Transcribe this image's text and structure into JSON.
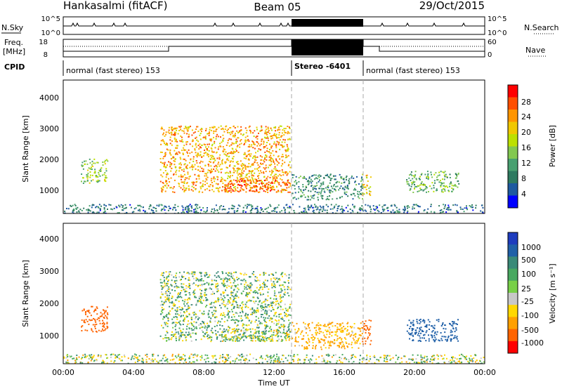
{
  "header": {
    "station": "Hankasalmi (fitACF)",
    "beam": "Beam 05",
    "date": "29/Oct/2015"
  },
  "panels_top": {
    "nsky_label": "N.Sky",
    "nsky_ticks": [
      "10^5",
      "10^0"
    ],
    "nsearch_label": "N.Search",
    "nsearch_ticks": [
      "10^5",
      "10^0"
    ],
    "freq_label_1": "Freq.",
    "freq_label_2": "[MHz]",
    "freq_ticks": [
      "18",
      "8"
    ],
    "nave_label": "Nave",
    "nave_ticks": [
      "60",
      "0"
    ],
    "cpid_label": "CPID",
    "cpid_segments": [
      {
        "label": "normal (fast stereo) 153",
        "start_h": 0,
        "end_h": 13
      },
      {
        "label": "Stereo -6401",
        "start_h": 13,
        "end_h": 17
      },
      {
        "label": "normal (fast stereo) 153",
        "start_h": 17,
        "end_h": 24
      }
    ]
  },
  "power_bar": {
    "label": "Power [dB]",
    "ticks": [
      "28",
      "24",
      "20",
      "16",
      "12",
      "8",
      "4"
    ],
    "colors": [
      "#ff0000",
      "#ff4f00",
      "#ff9500",
      "#f0c800",
      "#bce000",
      "#82c850",
      "#48a070",
      "#2e7a60",
      "#1e5aa0",
      "#0000ff"
    ]
  },
  "velocity_bar": {
    "label": "Velocity [m s⁻¹]",
    "ticks": [
      "1000",
      "500",
      "100",
      "25",
      "-25",
      "-100",
      "-500",
      "-1000"
    ],
    "colors": [
      "#1e3cbe",
      "#2060a8",
      "#3a8a78",
      "#48a860",
      "#78d048",
      "#c8c8c8",
      "#ffd800",
      "#ffa000",
      "#ff6400",
      "#ff0000"
    ]
  },
  "chart_data": {
    "type": "heatmap",
    "xlabel": "Time UT",
    "ylabel": "Slant Range [km]",
    "x_ticks": [
      "00:00",
      "04:00",
      "08:00",
      "12:00",
      "16:00",
      "20:00",
      "00:00"
    ],
    "y_ticks": [
      "1000",
      "2000",
      "3000",
      "4000"
    ],
    "ylim": [
      180,
      4600
    ],
    "xlim_hours": [
      0,
      24
    ],
    "mode_boundaries_hours": [
      13,
      17
    ],
    "panels": [
      {
        "name": "Power",
        "units": "dB",
        "range": [
          0,
          30
        ]
      },
      {
        "name": "Velocity",
        "units": "m s-1",
        "range": [
          -1000,
          1000
        ]
      }
    ],
    "echo_regions": [
      {
        "t0": 1.0,
        "t1": 2.5,
        "r0": 1200,
        "r1": 2000,
        "power": 14,
        "velocity": -150
      },
      {
        "t0": 5.5,
        "t1": 12.9,
        "r0": 900,
        "r1": 3100,
        "power": 22,
        "velocity": 10
      },
      {
        "t0": 9.0,
        "t1": 12.9,
        "r0": 900,
        "r1": 1300,
        "power": 26,
        "velocity": 0
      },
      {
        "t0": 13.0,
        "t1": 17.0,
        "r0": 650,
        "r1": 1500,
        "power": 8,
        "velocity": -30
      },
      {
        "t0": 17.0,
        "t1": 17.5,
        "r0": 800,
        "r1": 1600,
        "power": 18,
        "velocity": -200
      },
      {
        "t0": 19.5,
        "t1": 22.5,
        "r0": 900,
        "r1": 1600,
        "power": 12,
        "velocity": 300
      },
      {
        "t0": 0.0,
        "t1": 24.0,
        "r0": 200,
        "r1": 500,
        "power": 6,
        "velocity": 0
      }
    ]
  }
}
